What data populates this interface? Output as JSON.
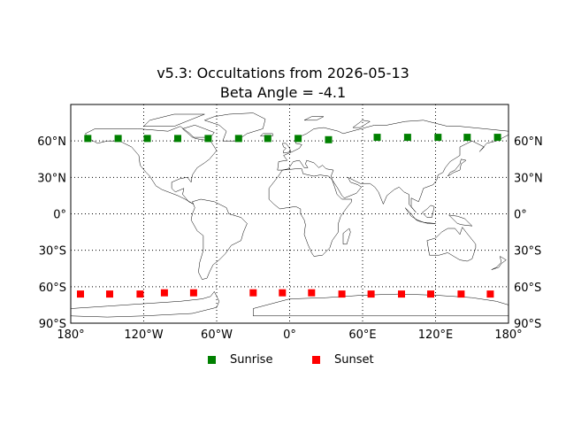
{
  "chart_data": {
    "type": "scatter",
    "title": "v5.3: Occultations from 2026-05-13",
    "subtitle": "Beta Angle = -4.1",
    "xlim": [
      -180,
      180
    ],
    "ylim": [
      -90,
      90
    ],
    "x_ticks": [
      {
        "value": -180,
        "label": "180°"
      },
      {
        "value": -120,
        "label": "120°W"
      },
      {
        "value": -60,
        "label": "60°W"
      },
      {
        "value": 0,
        "label": "0°"
      },
      {
        "value": 60,
        "label": "60°E"
      },
      {
        "value": 120,
        "label": "120°E"
      },
      {
        "value": 180,
        "label": "180°"
      }
    ],
    "y_ticks": [
      {
        "value": 60,
        "label": "60°N"
      },
      {
        "value": 30,
        "label": "30°N"
      },
      {
        "value": 0,
        "label": "0°"
      },
      {
        "value": -30,
        "label": "30°S"
      },
      {
        "value": -60,
        "label": "60°S"
      },
      {
        "value": -90,
        "label": "90°S"
      }
    ],
    "grid": true,
    "grid_style": "dotted",
    "legend_placement": "bottom-center",
    "series": [
      {
        "name": "Sunrise",
        "color": "#008000",
        "marker": "square",
        "points": [
          {
            "x": -166,
            "y": 62
          },
          {
            "x": -141,
            "y": 62
          },
          {
            "x": -117,
            "y": 62
          },
          {
            "x": -92,
            "y": 62
          },
          {
            "x": -67,
            "y": 62
          },
          {
            "x": -42,
            "y": 62
          },
          {
            "x": -18,
            "y": 62
          },
          {
            "x": 7,
            "y": 62
          },
          {
            "x": 32,
            "y": 61
          },
          {
            "x": 72,
            "y": 63
          },
          {
            "x": 97,
            "y": 63
          },
          {
            "x": 122,
            "y": 63
          },
          {
            "x": 146,
            "y": 63
          },
          {
            "x": 171,
            "y": 63
          }
        ]
      },
      {
        "name": "Sunset",
        "color": "#ff0000",
        "marker": "square",
        "points": [
          {
            "x": -172,
            "y": -66
          },
          {
            "x": -148,
            "y": -66
          },
          {
            "x": -123,
            "y": -66
          },
          {
            "x": -103,
            "y": -65
          },
          {
            "x": -79,
            "y": -65
          },
          {
            "x": -30,
            "y": -65
          },
          {
            "x": -6,
            "y": -65
          },
          {
            "x": 18,
            "y": -65
          },
          {
            "x": 43,
            "y": -66
          },
          {
            "x": 67,
            "y": -66
          },
          {
            "x": 92,
            "y": -66
          },
          {
            "x": 116,
            "y": -66
          },
          {
            "x": 141,
            "y": -66
          },
          {
            "x": 165,
            "y": -66
          }
        ]
      }
    ]
  }
}
